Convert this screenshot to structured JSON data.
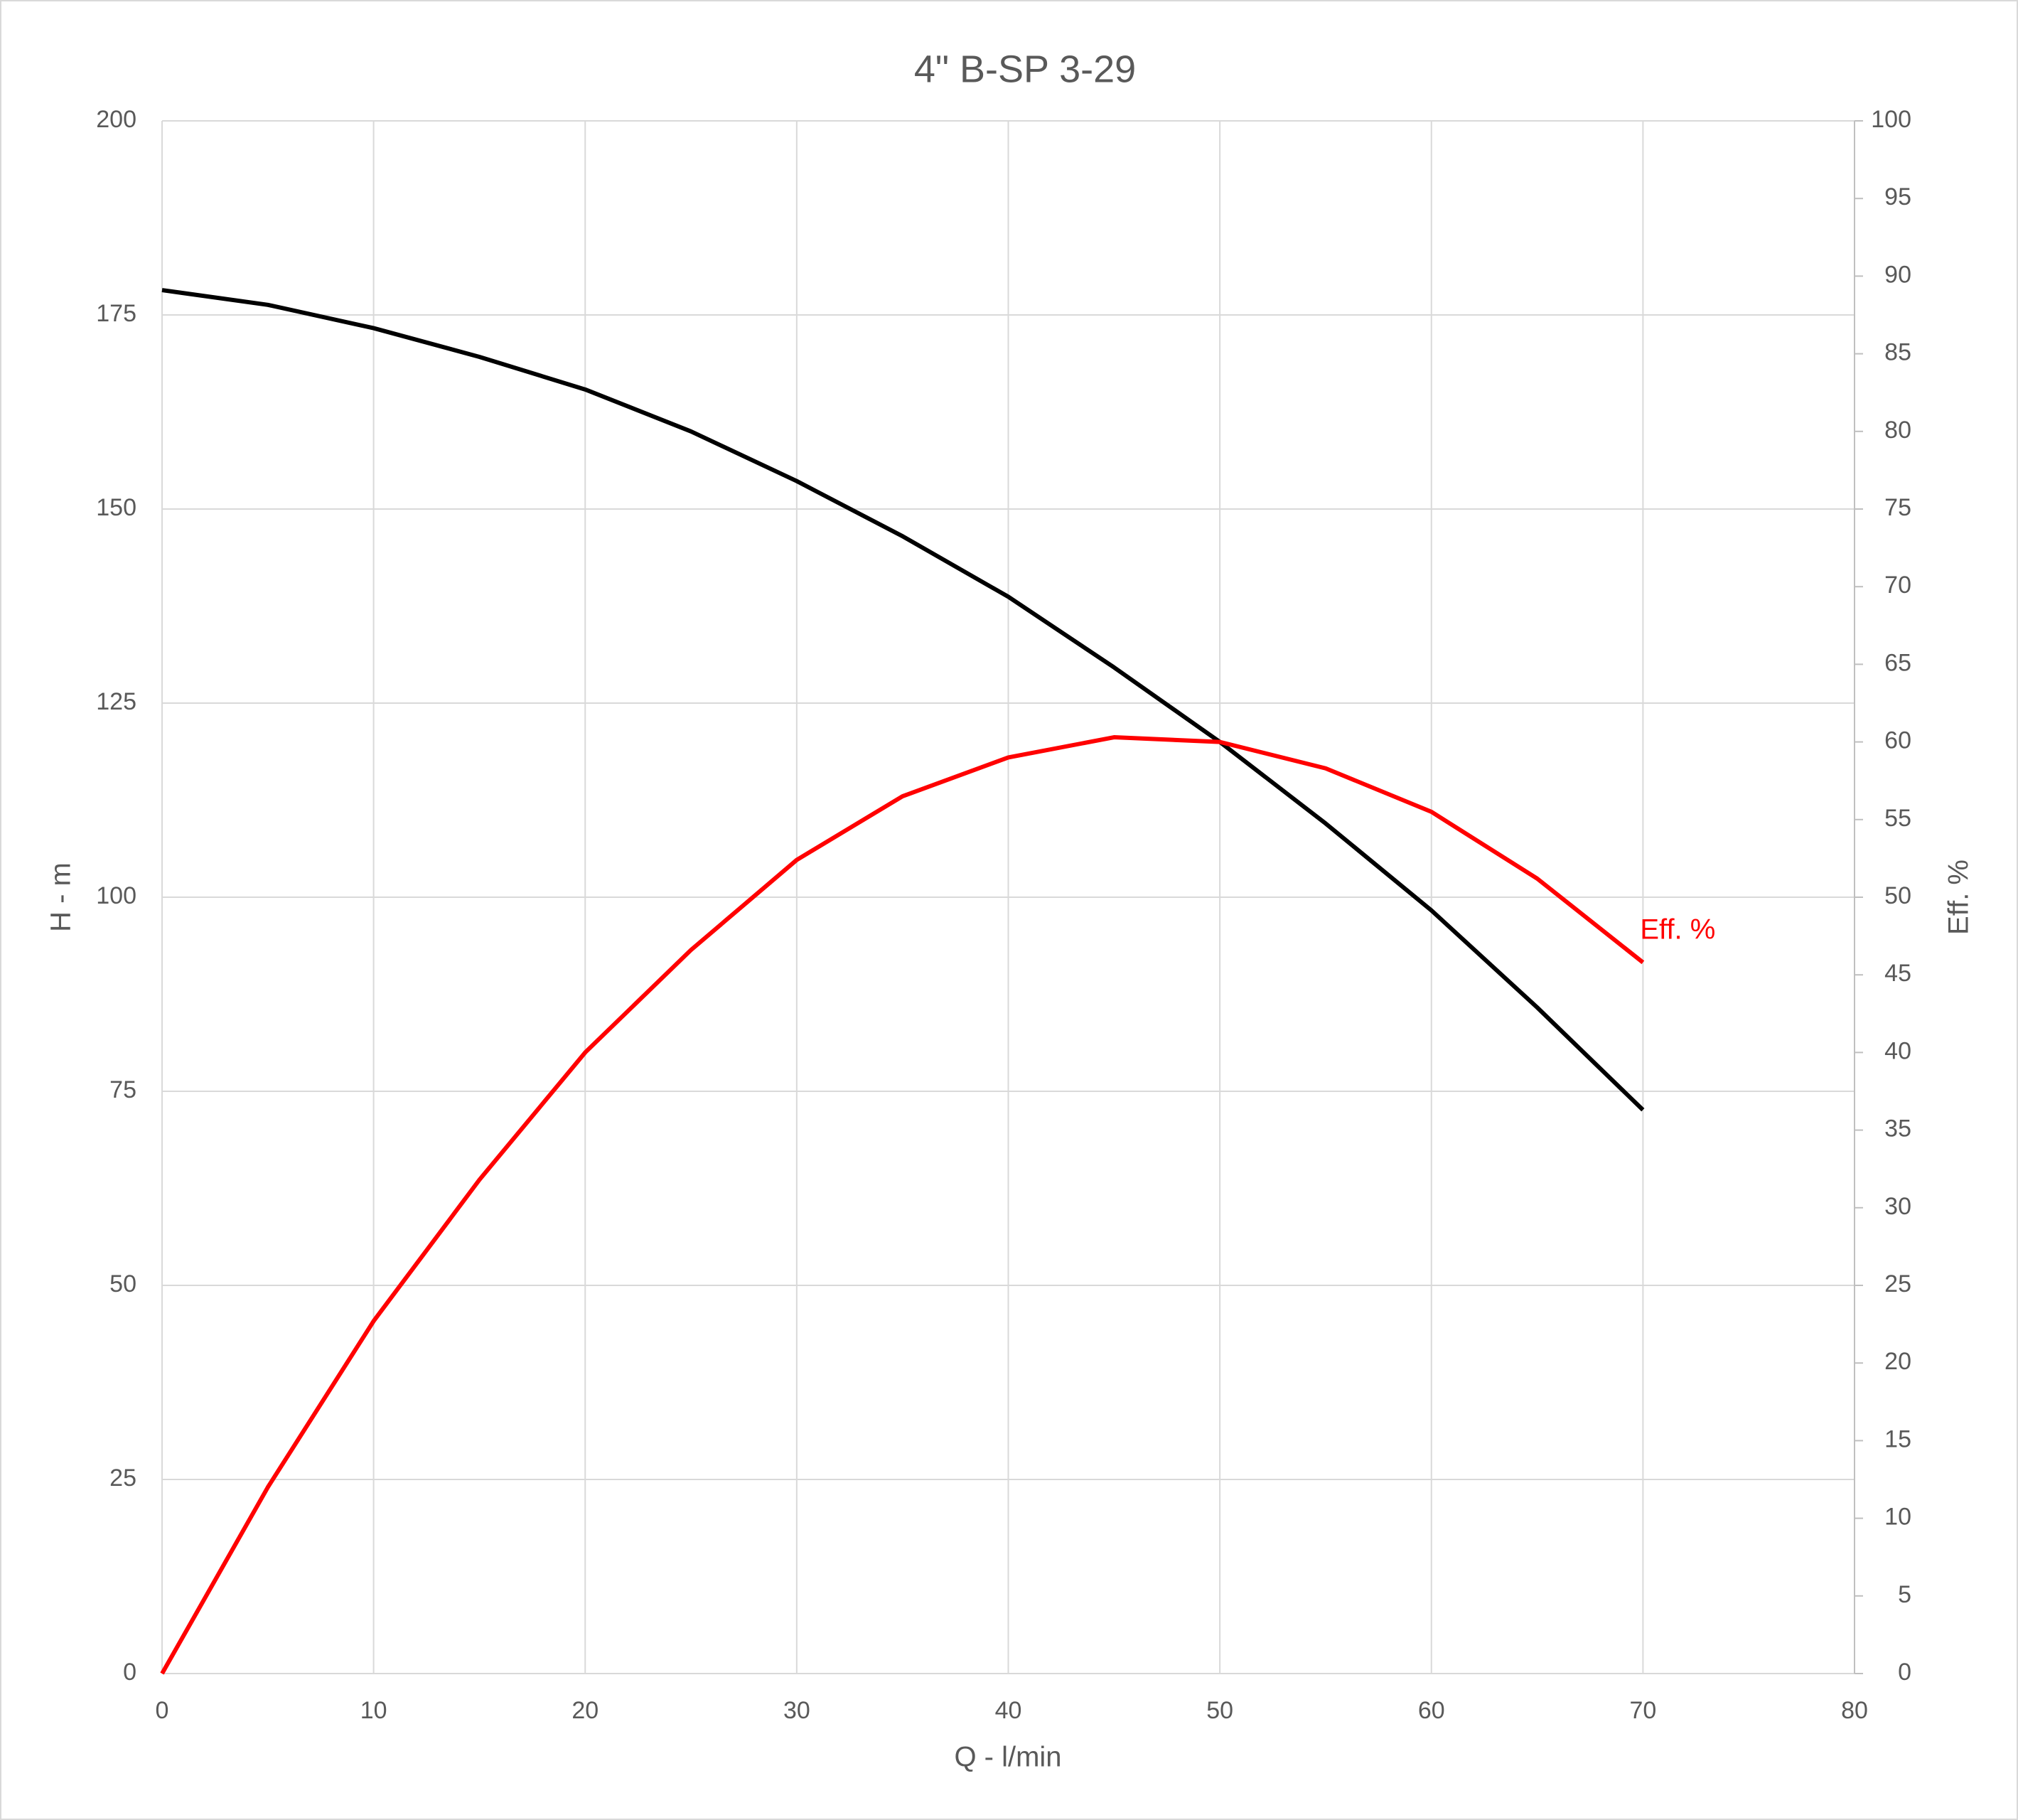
{
  "chart_data": {
    "type": "line",
    "title": "4\" B-SP 3-29",
    "x_label": "Q - l/min",
    "y_label": "H - m",
    "y2_label": "Eff. %",
    "x": [
      0,
      5,
      10,
      15,
      20,
      25,
      30,
      35,
      40,
      45,
      50,
      55,
      60,
      65,
      70
    ],
    "series": [
      {
        "color": "#000000",
        "values": [
          178.2,
          176.3,
          173.3,
          169.6,
          165.4,
          160.0,
          153.6,
          146.5,
          138.7,
          129.6,
          120.0,
          109.5,
          98.3,
          85.8,
          72.6
        ]
      },
      {
        "name": "Eff. %",
        "color": "#ff0000",
        "axis": "y2",
        "values": [
          0,
          12.0,
          22.7,
          31.8,
          40.0,
          46.6,
          52.4,
          56.5,
          59.0,
          60.3,
          60.0,
          58.3,
          55.5,
          51.2,
          45.8
        ]
      }
    ],
    "xlim": [
      0,
      80
    ],
    "xticks": [
      0,
      10,
      20,
      30,
      40,
      50,
      60,
      70,
      80
    ],
    "ylim": [
      0,
      200
    ],
    "yticks": [
      0,
      25,
      50,
      75,
      100,
      125,
      150,
      175,
      200
    ],
    "y2lim": [
      0,
      100
    ],
    "y2ticks": [
      0,
      5,
      10,
      15,
      20,
      25,
      30,
      35,
      40,
      45,
      50,
      55,
      60,
      65,
      70,
      75,
      80,
      85,
      90,
      95,
      100
    ],
    "grid": true
  }
}
